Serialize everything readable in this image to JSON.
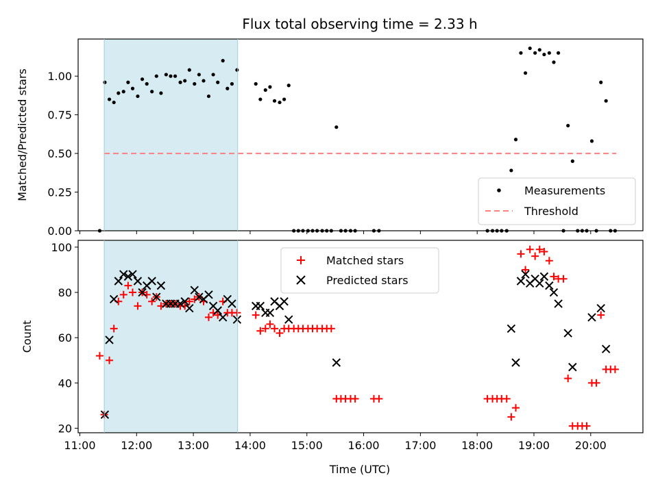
{
  "chart_data": [
    {
      "type": "scatter",
      "title": "Flux total observing time = 2.33 h",
      "xlabel": "",
      "ylabel": "Matched/Predicted stars",
      "xlim": [
        10.97,
        20.92
      ],
      "ylim": [
        0,
        1.24
      ],
      "yticks": [
        0,
        0.25,
        0.5,
        0.75,
        1.0
      ],
      "ytick_labels": [
        "0.00",
        "0.25",
        "0.50",
        "0.75",
        "1.00"
      ],
      "shaded_span": [
        11.43,
        13.78
      ],
      "threshold": {
        "value": 0.5,
        "x_range": [
          11.43,
          20.45
        ],
        "color": "#ff7f7f"
      },
      "legend": {
        "location": "lower right",
        "entries": [
          "Measurements",
          "Threshold"
        ]
      },
      "series": [
        {
          "name": "Measurements",
          "color": "#000000",
          "points": [
            [
              11.35,
              0.0
            ],
            [
              11.44,
              0.96
            ],
            [
              11.52,
              0.85
            ],
            [
              11.6,
              0.83
            ],
            [
              11.68,
              0.89
            ],
            [
              11.77,
              0.9
            ],
            [
              11.85,
              0.96
            ],
            [
              11.93,
              0.92
            ],
            [
              12.02,
              0.87
            ],
            [
              12.1,
              0.98
            ],
            [
              12.18,
              0.95
            ],
            [
              12.27,
              0.9
            ],
            [
              12.35,
              1.0
            ],
            [
              12.43,
              0.89
            ],
            [
              12.52,
              1.01
            ],
            [
              12.6,
              1.0
            ],
            [
              12.68,
              1.0
            ],
            [
              12.77,
              0.96
            ],
            [
              12.85,
              0.97
            ],
            [
              12.93,
              1.04
            ],
            [
              13.02,
              0.95
            ],
            [
              13.1,
              1.01
            ],
            [
              13.18,
              0.97
            ],
            [
              13.27,
              0.87
            ],
            [
              13.35,
              1.01
            ],
            [
              13.43,
              0.96
            ],
            [
              13.52,
              1.1
            ],
            [
              13.6,
              0.92
            ],
            [
              13.68,
              0.95
            ],
            [
              13.77,
              1.04
            ],
            [
              14.1,
              0.95
            ],
            [
              14.18,
              0.85
            ],
            [
              14.27,
              0.91
            ],
            [
              14.35,
              0.93
            ],
            [
              14.43,
              0.84
            ],
            [
              14.52,
              0.83
            ],
            [
              14.6,
              0.85
            ],
            [
              14.68,
              0.94
            ],
            [
              14.77,
              0.0
            ],
            [
              14.85,
              0.0
            ],
            [
              14.93,
              0.0
            ],
            [
              15.02,
              0.0
            ],
            [
              15.1,
              0.0
            ],
            [
              15.18,
              0.0
            ],
            [
              15.27,
              0.0
            ],
            [
              15.35,
              0.0
            ],
            [
              15.43,
              0.0
            ],
            [
              15.52,
              0.67
            ],
            [
              15.6,
              0.0
            ],
            [
              15.68,
              0.0
            ],
            [
              15.77,
              0.0
            ],
            [
              15.85,
              0.0
            ],
            [
              16.18,
              0.0
            ],
            [
              16.27,
              0.0
            ],
            [
              18.18,
              0.0
            ],
            [
              18.27,
              0.0
            ],
            [
              18.35,
              0.0
            ],
            [
              18.43,
              0.0
            ],
            [
              18.52,
              0.0
            ],
            [
              18.6,
              0.39
            ],
            [
              18.68,
              0.59
            ],
            [
              18.77,
              1.15
            ],
            [
              18.85,
              1.02
            ],
            [
              18.93,
              1.18
            ],
            [
              19.02,
              1.15
            ],
            [
              19.1,
              1.17
            ],
            [
              19.18,
              1.14
            ],
            [
              19.27,
              1.15
            ],
            [
              19.35,
              1.09
            ],
            [
              19.43,
              1.15
            ],
            [
              19.52,
              0.0
            ],
            [
              19.6,
              0.68
            ],
            [
              19.68,
              0.45
            ],
            [
              19.77,
              0.0
            ],
            [
              19.85,
              0.0
            ],
            [
              19.93,
              0.0
            ],
            [
              20.02,
              0.58
            ],
            [
              20.1,
              0.0
            ],
            [
              20.18,
              0.96
            ],
            [
              20.27,
              0.84
            ],
            [
              20.35,
              0.0
            ],
            [
              20.43,
              0.0
            ]
          ]
        }
      ]
    },
    {
      "type": "scatter",
      "title": "",
      "xlabel": "Time (UTC)",
      "ylabel": "Count",
      "xlim": [
        10.97,
        20.92
      ],
      "ylim": [
        18,
        103
      ],
      "yticks": [
        20,
        40,
        60,
        80,
        100
      ],
      "ytick_labels": [
        "20",
        "40",
        "60",
        "80",
        "100"
      ],
      "xticks": [
        11,
        12,
        13,
        14,
        15,
        16,
        17,
        18,
        19,
        20
      ],
      "xtick_labels": [
        "11:00",
        "12:00",
        "13:00",
        "14:00",
        "15:00",
        "16:00",
        "17:00",
        "18:00",
        "19:00",
        "20:00"
      ],
      "shaded_span": [
        11.43,
        13.78
      ],
      "legend": {
        "location": "upper center",
        "entries": [
          "Matched stars",
          "Predicted stars"
        ]
      },
      "series": [
        {
          "name": "Matched stars",
          "marker": "+",
          "color": "#ff0000",
          "points": [
            [
              11.35,
              52
            ],
            [
              11.43,
              26
            ],
            [
              11.52,
              50
            ],
            [
              11.6,
              64
            ],
            [
              11.68,
              76
            ],
            [
              11.77,
              79
            ],
            [
              11.85,
              83
            ],
            [
              11.93,
              80
            ],
            [
              12.02,
              74
            ],
            [
              12.1,
              80
            ],
            [
              12.18,
              79
            ],
            [
              12.27,
              76
            ],
            [
              12.35,
              78
            ],
            [
              12.43,
              74
            ],
            [
              12.52,
              75
            ],
            [
              12.6,
              75
            ],
            [
              12.68,
              75
            ],
            [
              12.77,
              74
            ],
            [
              12.85,
              74
            ],
            [
              12.93,
              76
            ],
            [
              13.02,
              77
            ],
            [
              13.1,
              78
            ],
            [
              13.18,
              76
            ],
            [
              13.27,
              69
            ],
            [
              13.35,
              71
            ],
            [
              13.43,
              70
            ],
            [
              13.52,
              76
            ],
            [
              13.6,
              71
            ],
            [
              13.68,
              71
            ],
            [
              13.77,
              71
            ],
            [
              14.1,
              70
            ],
            [
              14.18,
              63
            ],
            [
              14.27,
              64
            ],
            [
              14.35,
              66
            ],
            [
              14.43,
              64
            ],
            [
              14.52,
              62
            ],
            [
              14.6,
              64
            ],
            [
              14.68,
              64
            ],
            [
              14.77,
              64
            ],
            [
              14.85,
              64
            ],
            [
              14.93,
              64
            ],
            [
              15.02,
              64
            ],
            [
              15.1,
              64
            ],
            [
              15.18,
              64
            ],
            [
              15.27,
              64
            ],
            [
              15.35,
              64
            ],
            [
              15.43,
              64
            ],
            [
              15.52,
              33
            ],
            [
              15.6,
              33
            ],
            [
              15.68,
              33
            ],
            [
              15.77,
              33
            ],
            [
              15.85,
              33
            ],
            [
              16.18,
              33
            ],
            [
              16.27,
              33
            ],
            [
              18.18,
              33
            ],
            [
              18.27,
              33
            ],
            [
              18.35,
              33
            ],
            [
              18.43,
              33
            ],
            [
              18.52,
              33
            ],
            [
              18.6,
              25
            ],
            [
              18.68,
              29
            ],
            [
              18.77,
              97
            ],
            [
              18.85,
              90
            ],
            [
              18.93,
              99
            ],
            [
              19.02,
              96
            ],
            [
              19.1,
              99
            ],
            [
              19.18,
              98
            ],
            [
              19.27,
              94
            ],
            [
              19.35,
              87
            ],
            [
              19.43,
              86
            ],
            [
              19.52,
              86
            ],
            [
              19.6,
              42
            ],
            [
              19.68,
              21
            ],
            [
              19.77,
              21
            ],
            [
              19.85,
              21
            ],
            [
              19.93,
              21
            ],
            [
              20.02,
              40
            ],
            [
              20.1,
              40
            ],
            [
              20.18,
              70
            ],
            [
              20.27,
              46
            ],
            [
              20.35,
              46
            ],
            [
              20.43,
              46
            ]
          ]
        },
        {
          "name": "Predicted stars",
          "marker": "x",
          "color": "#000000",
          "points": [
            [
              11.44,
              26
            ],
            [
              11.52,
              59
            ],
            [
              11.6,
              77
            ],
            [
              11.68,
              85
            ],
            [
              11.77,
              88
            ],
            [
              11.85,
              87
            ],
            [
              11.93,
              88
            ],
            [
              12.02,
              85
            ],
            [
              12.1,
              80
            ],
            [
              12.18,
              83
            ],
            [
              12.27,
              85
            ],
            [
              12.35,
              78
            ],
            [
              12.43,
              83
            ],
            [
              12.52,
              75
            ],
            [
              12.6,
              75
            ],
            [
              12.68,
              75
            ],
            [
              12.77,
              75
            ],
            [
              12.85,
              76
            ],
            [
              12.93,
              73
            ],
            [
              13.02,
              81
            ],
            [
              13.1,
              78
            ],
            [
              13.18,
              77
            ],
            [
              13.27,
              79
            ],
            [
              13.35,
              74
            ],
            [
              13.43,
              72
            ],
            [
              13.52,
              69
            ],
            [
              13.6,
              77
            ],
            [
              13.68,
              75
            ],
            [
              13.77,
              68
            ],
            [
              14.1,
              74
            ],
            [
              14.18,
              74
            ],
            [
              14.27,
              71
            ],
            [
              14.35,
              71
            ],
            [
              14.43,
              76
            ],
            [
              14.52,
              74
            ],
            [
              14.6,
              76
            ],
            [
              14.68,
              68
            ],
            [
              15.52,
              49
            ],
            [
              18.6,
              64
            ],
            [
              18.68,
              49
            ],
            [
              18.77,
              85
            ],
            [
              18.85,
              88
            ],
            [
              18.93,
              84
            ],
            [
              19.02,
              86
            ],
            [
              19.1,
              84
            ],
            [
              19.18,
              87
            ],
            [
              19.27,
              83
            ],
            [
              19.35,
              80
            ],
            [
              19.43,
              75
            ],
            [
              19.6,
              62
            ],
            [
              19.68,
              47
            ],
            [
              20.02,
              69
            ],
            [
              20.18,
              73
            ],
            [
              20.27,
              55
            ]
          ]
        }
      ]
    }
  ]
}
